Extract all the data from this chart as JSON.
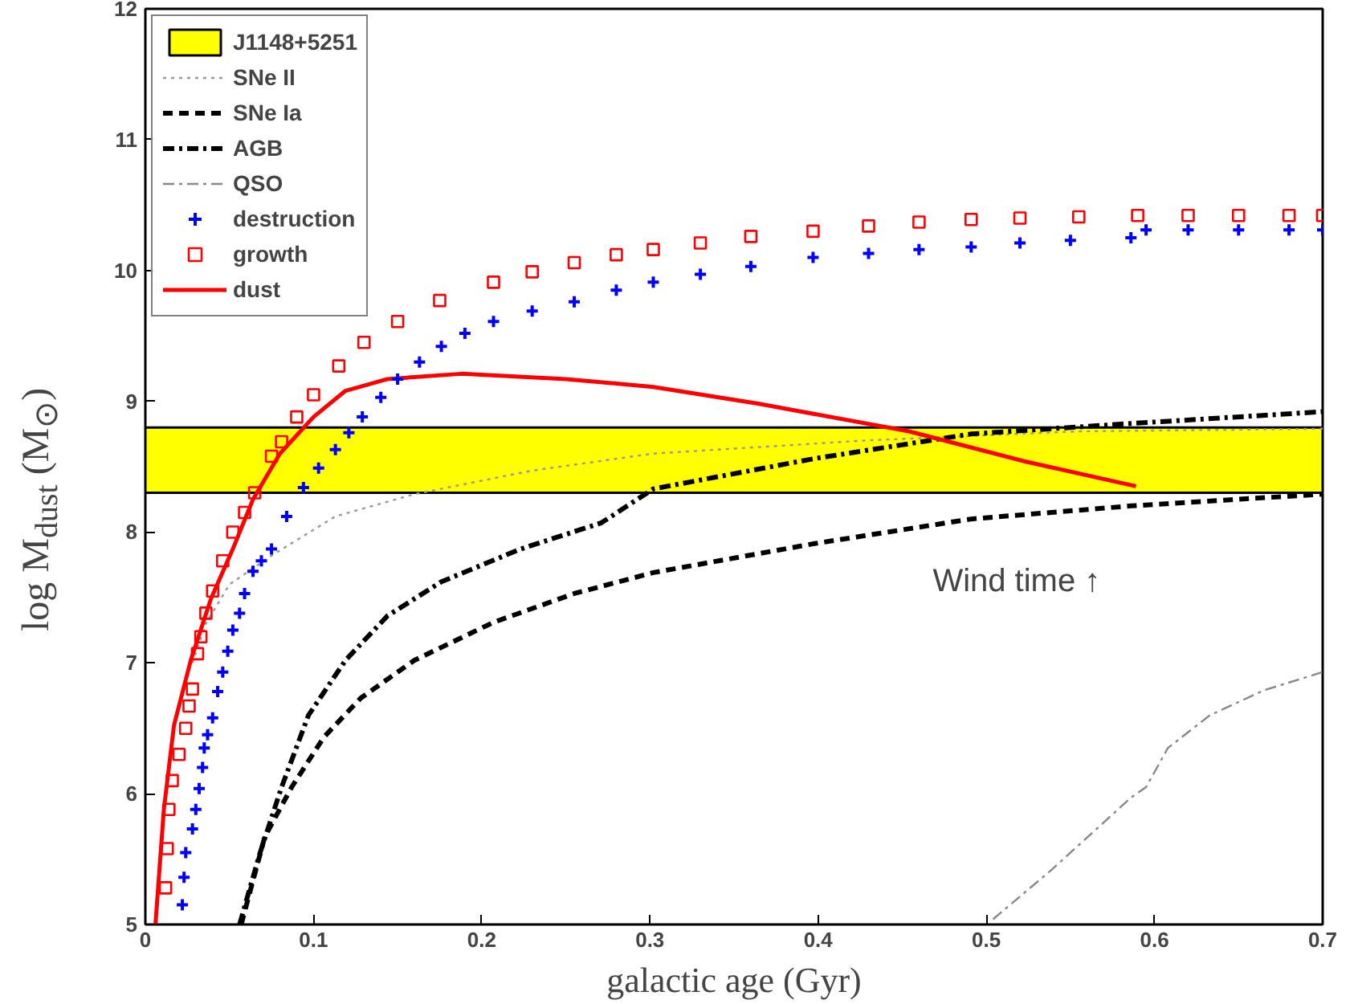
{
  "chart_data": {
    "type": "line",
    "xlabel": "galactic age (Gyr)",
    "ylabel": "log M$_{dust}$ (M$_{⊙}$)",
    "xlim": [
      0,
      0.7
    ],
    "xticks": [
      0,
      0.1,
      0.2,
      0.3,
      0.4,
      0.5,
      0.6,
      0.7
    ],
    "ylim": [
      5,
      12
    ],
    "yticks": [
      5,
      6,
      7,
      8,
      9,
      10,
      11,
      12
    ],
    "grid": false,
    "legend": "top left",
    "bands": [
      {
        "axis": "y",
        "from": 8.3,
        "to": 8.8,
        "label": "J1148+5251",
        "color": "#ffff00"
      }
    ],
    "annotations": [
      "Wind time ↑"
    ],
    "series": [
      {
        "name": "SNe II",
        "color": "#999999",
        "line_style": "dotted",
        "marker": "none",
        "x": [
          0.028,
          0.036,
          0.05,
          0.075,
          0.113,
          0.16,
          0.23,
          0.302,
          0.428,
          0.555,
          0.7
        ],
        "values": [
          7.0,
          7.3,
          7.6,
          7.82,
          8.12,
          8.29,
          8.47,
          8.6,
          8.7,
          8.77,
          8.79
        ]
      },
      {
        "name": "SNe Ia",
        "color": "#000000",
        "line_style": "dashed",
        "marker": "none",
        "x": [
          0.057,
          0.071,
          0.087,
          0.106,
          0.128,
          0.16,
          0.207,
          0.255,
          0.302,
          0.397,
          0.491,
          0.586,
          0.7
        ],
        "values": [
          5.0,
          5.67,
          6.05,
          6.43,
          6.73,
          7.02,
          7.31,
          7.53,
          7.69,
          7.91,
          8.1,
          8.2,
          8.29
        ]
      },
      {
        "name": "AGB",
        "color": "#000000",
        "line_style": "dashdot",
        "marker": "none",
        "x": [
          0.056,
          0.068,
          0.081,
          0.097,
          0.119,
          0.144,
          0.176,
          0.223,
          0.271,
          0.302,
          0.397,
          0.491,
          0.586,
          0.7
        ],
        "values": [
          5.0,
          5.54,
          6.05,
          6.6,
          7.02,
          7.36,
          7.62,
          7.87,
          8.07,
          8.33,
          8.56,
          8.75,
          8.83,
          8.92
        ]
      },
      {
        "name": "QSO",
        "color": "#888888",
        "line_style": "dashdot",
        "marker": "none",
        "x": [
          0.504,
          0.539,
          0.586,
          0.595,
          0.608,
          0.633,
          0.665,
          0.7
        ],
        "values": [
          5.04,
          5.42,
          5.97,
          6.05,
          6.35,
          6.6,
          6.79,
          6.93
        ]
      },
      {
        "name": "destruction",
        "color": "#0000ff",
        "type": "scatter",
        "marker": "cross",
        "x": [
          0.022,
          0.023,
          0.024,
          0.028,
          0.03,
          0.032,
          0.034,
          0.035,
          0.037,
          0.04,
          0.043,
          0.046,
          0.049,
          0.052,
          0.056,
          0.059,
          0.064,
          0.069,
          0.075,
          0.084,
          0.094,
          0.103,
          0.113,
          0.121,
          0.129,
          0.14,
          0.15,
          0.163,
          0.176,
          0.19,
          0.207,
          0.23,
          0.255,
          0.28,
          0.302,
          0.33,
          0.36,
          0.397,
          0.43,
          0.46,
          0.491,
          0.52,
          0.55,
          0.586,
          0.595,
          0.62,
          0.65,
          0.68,
          0.7
        ],
        "values": [
          5.15,
          5.36,
          5.55,
          5.73,
          5.88,
          6.04,
          6.2,
          6.35,
          6.45,
          6.58,
          6.78,
          6.93,
          7.09,
          7.25,
          7.38,
          7.53,
          7.7,
          7.78,
          7.87,
          8.12,
          8.34,
          8.49,
          8.63,
          8.76,
          8.88,
          9.03,
          9.17,
          9.3,
          9.42,
          9.52,
          9.61,
          9.69,
          9.76,
          9.85,
          9.91,
          9.97,
          10.03,
          10.1,
          10.13,
          10.16,
          10.18,
          10.21,
          10.23,
          10.25,
          10.31,
          10.31,
          10.31,
          10.31,
          10.31
        ]
      },
      {
        "name": "growth",
        "color": "#ff0000",
        "type": "scatter",
        "marker": "square",
        "x": [
          0.012,
          0.013,
          0.014,
          0.016,
          0.02,
          0.024,
          0.026,
          0.028,
          0.031,
          0.033,
          0.036,
          0.04,
          0.046,
          0.052,
          0.059,
          0.065,
          0.075,
          0.081,
          0.09,
          0.1,
          0.115,
          0.13,
          0.15,
          0.175,
          0.207,
          0.23,
          0.255,
          0.28,
          0.302,
          0.33,
          0.36,
          0.397,
          0.43,
          0.46,
          0.491,
          0.52,
          0.555,
          0.59,
          0.62,
          0.65,
          0.68,
          0.7
        ],
        "values": [
          5.28,
          5.58,
          5.88,
          6.1,
          6.3,
          6.5,
          6.67,
          6.8,
          7.07,
          7.2,
          7.38,
          7.55,
          7.78,
          8.0,
          8.15,
          8.3,
          8.58,
          8.69,
          8.88,
          9.05,
          9.27,
          9.45,
          9.61,
          9.77,
          9.91,
          9.99,
          10.06,
          10.12,
          10.16,
          10.21,
          10.26,
          10.3,
          10.34,
          10.37,
          10.39,
          10.4,
          10.41,
          10.42,
          10.42,
          10.42,
          10.42,
          10.42
        ]
      },
      {
        "name": "dust",
        "color": "#ff0000",
        "line_style": "solid",
        "marker": "none",
        "x": [
          0.006,
          0.011,
          0.017,
          0.027,
          0.039,
          0.052,
          0.064,
          0.08,
          0.1,
          0.119,
          0.144,
          0.188,
          0.25,
          0.302,
          0.365,
          0.454,
          0.523,
          0.589
        ],
        "values": [
          5.0,
          5.88,
          6.52,
          7.02,
          7.49,
          7.87,
          8.25,
          8.6,
          8.88,
          9.08,
          9.17,
          9.21,
          9.17,
          9.11,
          8.98,
          8.77,
          8.54,
          8.35
        ]
      }
    ]
  }
}
